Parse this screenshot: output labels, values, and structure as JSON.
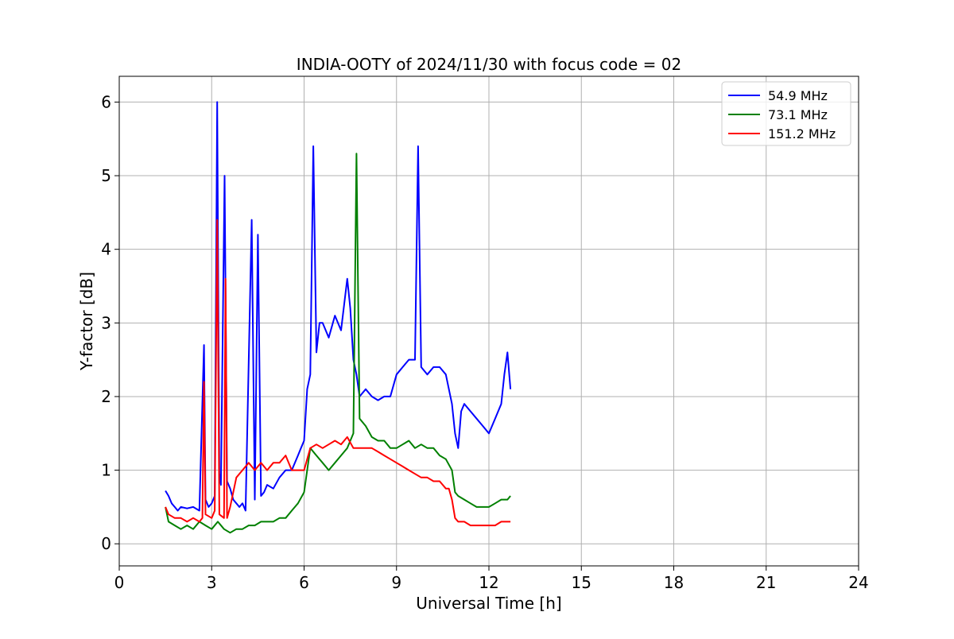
{
  "chart_data": {
    "type": "line",
    "title": "INDIA-OOTY of 2024/11/30 with focus code = 02",
    "xlabel": "Universal Time [h]",
    "ylabel": "Y-factor [dB]",
    "xlim": [
      0,
      24
    ],
    "ylim": [
      -0.3,
      6.35
    ],
    "xticks": [
      0,
      3,
      6,
      9,
      12,
      15,
      18,
      21,
      24
    ],
    "yticks": [
      0,
      1,
      2,
      3,
      4,
      5,
      6
    ],
    "xtick_labels": [
      "0",
      "3",
      "6",
      "9",
      "12",
      "15",
      "18",
      "21",
      "24"
    ],
    "ytick_labels": [
      "0",
      "1",
      "2",
      "3",
      "4",
      "5",
      "6"
    ],
    "grid": true,
    "legend_position": "top-right",
    "series": [
      {
        "name": "54.9 MHz",
        "color": "#0000ff",
        "x": [
          1.5,
          1.6,
          1.7,
          1.8,
          1.9,
          2.0,
          2.2,
          2.4,
          2.6,
          2.75,
          2.8,
          2.9,
          3.0,
          3.1,
          3.18,
          3.25,
          3.3,
          3.42,
          3.5,
          3.6,
          3.7,
          3.8,
          3.9,
          4.0,
          4.1,
          4.3,
          4.4,
          4.5,
          4.6,
          4.7,
          4.8,
          5.0,
          5.2,
          5.4,
          5.6,
          5.8,
          5.9,
          6.0,
          6.1,
          6.2,
          6.3,
          6.4,
          6.5,
          6.6,
          6.8,
          7.0,
          7.2,
          7.4,
          7.5,
          7.6,
          7.7,
          7.8,
          8.0,
          8.2,
          8.4,
          8.6,
          8.8,
          9.0,
          9.2,
          9.4,
          9.6,
          9.7,
          9.8,
          10.0,
          10.2,
          10.4,
          10.6,
          10.8,
          10.9,
          11.0,
          11.1,
          11.2,
          11.4,
          11.6,
          11.8,
          12.0,
          12.2,
          12.4,
          12.5,
          12.6,
          12.7
        ],
        "y": [
          0.72,
          0.65,
          0.55,
          0.5,
          0.45,
          0.5,
          0.48,
          0.5,
          0.45,
          2.7,
          0.6,
          0.5,
          0.55,
          0.65,
          6.0,
          0.95,
          0.8,
          5.0,
          0.85,
          0.75,
          0.6,
          0.55,
          0.5,
          0.55,
          0.45,
          4.4,
          0.6,
          4.2,
          0.65,
          0.7,
          0.8,
          0.75,
          0.9,
          1.0,
          1.0,
          1.2,
          1.3,
          1.4,
          2.1,
          2.3,
          5.4,
          2.6,
          3.0,
          3.0,
          2.8,
          3.1,
          2.9,
          3.6,
          3.2,
          2.5,
          2.3,
          2.0,
          2.1,
          2.0,
          1.95,
          2.0,
          2.0,
          2.3,
          2.4,
          2.5,
          2.5,
          5.4,
          2.4,
          2.3,
          2.4,
          2.4,
          2.3,
          1.9,
          1.5,
          1.3,
          1.8,
          1.9,
          1.8,
          1.7,
          1.6,
          1.5,
          1.7,
          1.9,
          2.3,
          2.6,
          2.1
        ]
      },
      {
        "name": "73.1 MHz",
        "color": "#008000",
        "x": [
          1.5,
          1.6,
          1.8,
          2.0,
          2.2,
          2.4,
          2.6,
          2.8,
          3.0,
          3.2,
          3.4,
          3.6,
          3.8,
          4.0,
          4.2,
          4.4,
          4.6,
          4.8,
          5.0,
          5.2,
          5.4,
          5.6,
          5.8,
          6.0,
          6.1,
          6.2,
          6.4,
          6.6,
          6.8,
          7.0,
          7.2,
          7.4,
          7.6,
          7.7,
          7.8,
          8.0,
          8.2,
          8.4,
          8.6,
          8.8,
          9.0,
          9.2,
          9.4,
          9.6,
          9.8,
          10.0,
          10.2,
          10.4,
          10.6,
          10.8,
          10.9,
          11.0,
          11.2,
          11.4,
          11.6,
          11.8,
          12.0,
          12.2,
          12.4,
          12.6,
          12.7
        ],
        "y": [
          0.5,
          0.3,
          0.25,
          0.2,
          0.25,
          0.2,
          0.3,
          0.25,
          0.2,
          0.3,
          0.2,
          0.15,
          0.2,
          0.2,
          0.25,
          0.25,
          0.3,
          0.3,
          0.3,
          0.35,
          0.35,
          0.45,
          0.55,
          0.7,
          1.0,
          1.3,
          1.2,
          1.1,
          1.0,
          1.1,
          1.2,
          1.3,
          1.5,
          5.3,
          1.7,
          1.6,
          1.45,
          1.4,
          1.4,
          1.3,
          1.3,
          1.35,
          1.4,
          1.3,
          1.35,
          1.3,
          1.3,
          1.2,
          1.15,
          1.0,
          0.7,
          0.65,
          0.6,
          0.55,
          0.5,
          0.5,
          0.5,
          0.55,
          0.6,
          0.6,
          0.65
        ]
      },
      {
        "name": "151.2 MHz",
        "color": "#ff0000",
        "x": [
          1.5,
          1.6,
          1.8,
          2.0,
          2.2,
          2.4,
          2.6,
          2.7,
          2.75,
          2.8,
          3.0,
          3.1,
          3.18,
          3.25,
          3.4,
          3.45,
          3.5,
          3.6,
          3.7,
          3.8,
          4.0,
          4.2,
          4.4,
          4.6,
          4.8,
          5.0,
          5.2,
          5.4,
          5.6,
          5.8,
          6.0,
          6.2,
          6.4,
          6.6,
          6.8,
          7.0,
          7.2,
          7.4,
          7.6,
          7.8,
          8.0,
          8.2,
          8.4,
          8.6,
          8.8,
          9.0,
          9.2,
          9.4,
          9.6,
          9.8,
          10.0,
          10.2,
          10.4,
          10.6,
          10.7,
          10.8,
          10.9,
          11.0,
          11.2,
          11.4,
          11.6,
          11.8,
          12.0,
          12.2,
          12.4,
          12.6,
          12.7
        ],
        "y": [
          0.5,
          0.4,
          0.35,
          0.35,
          0.3,
          0.35,
          0.3,
          0.35,
          2.2,
          0.4,
          0.35,
          0.45,
          4.4,
          0.4,
          0.35,
          3.6,
          0.35,
          0.5,
          0.7,
          0.9,
          1.0,
          1.1,
          1.0,
          1.1,
          1.0,
          1.1,
          1.1,
          1.2,
          1.0,
          1.0,
          1.0,
          1.3,
          1.35,
          1.3,
          1.35,
          1.4,
          1.35,
          1.45,
          1.3,
          1.3,
          1.3,
          1.3,
          1.25,
          1.2,
          1.15,
          1.1,
          1.05,
          1.0,
          0.95,
          0.9,
          0.9,
          0.85,
          0.85,
          0.75,
          0.75,
          0.6,
          0.35,
          0.3,
          0.3,
          0.25,
          0.25,
          0.25,
          0.25,
          0.25,
          0.3,
          0.3,
          0.3
        ]
      }
    ]
  }
}
